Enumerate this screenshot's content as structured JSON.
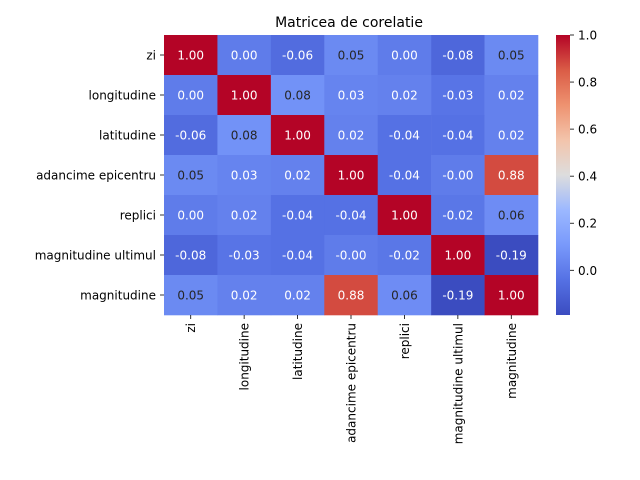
{
  "chart_data": {
    "type": "heatmap",
    "title": "Matricea de corelatie",
    "rows": [
      "zi",
      "longitudine",
      "latitudine",
      "adancime epicentru",
      "replici",
      "magnitudine ultimul",
      "magnitudine"
    ],
    "columns": [
      "zi",
      "longitudine",
      "latitudine",
      "adancime epicentru",
      "replici",
      "magnitudine ultimul",
      "magnitudine"
    ],
    "values": [
      [
        1.0,
        0.0,
        -0.06,
        0.05,
        0.0,
        -0.08,
        0.05
      ],
      [
        0.0,
        1.0,
        0.08,
        0.03,
        0.02,
        -0.03,
        0.02
      ],
      [
        -0.06,
        0.08,
        1.0,
        0.02,
        -0.04,
        -0.04,
        0.02
      ],
      [
        0.05,
        0.03,
        0.02,
        1.0,
        -0.04,
        -0.0,
        0.88
      ],
      [
        0.0,
        0.02,
        -0.04,
        -0.04,
        1.0,
        -0.02,
        0.06
      ],
      [
        -0.08,
        -0.03,
        -0.04,
        -0.0,
        -0.02,
        1.0,
        -0.19
      ],
      [
        0.05,
        0.02,
        0.02,
        0.88,
        0.06,
        -0.19,
        1.0
      ]
    ],
    "value_labels": [
      [
        "1.00",
        "0.00",
        "-0.06",
        "0.05",
        "0.00",
        "-0.08",
        "0.05"
      ],
      [
        "0.00",
        "1.00",
        "0.08",
        "0.03",
        "0.02",
        "-0.03",
        "0.02"
      ],
      [
        "-0.06",
        "0.08",
        "1.00",
        "0.02",
        "-0.04",
        "-0.04",
        "0.02"
      ],
      [
        "0.05",
        "0.03",
        "0.02",
        "1.00",
        "-0.04",
        "-0.00",
        "0.88"
      ],
      [
        "0.00",
        "0.02",
        "-0.04",
        "-0.04",
        "1.00",
        "-0.02",
        "0.06"
      ],
      [
        "-0.08",
        "-0.03",
        "-0.04",
        "-0.00",
        "-0.02",
        "1.00",
        "-0.19"
      ],
      [
        "0.05",
        "0.02",
        "0.02",
        "0.88",
        "0.06",
        "-0.19",
        "1.00"
      ]
    ],
    "colormap": "coolwarm",
    "color_range": [
      -0.19,
      1.0
    ],
    "colorbar_ticks": [
      0.0,
      0.2,
      0.4,
      0.6,
      0.8,
      1.0
    ],
    "colorbar_tick_labels": [
      "0.0",
      "0.2",
      "0.4",
      "0.6",
      "0.8",
      "1.0"
    ]
  }
}
